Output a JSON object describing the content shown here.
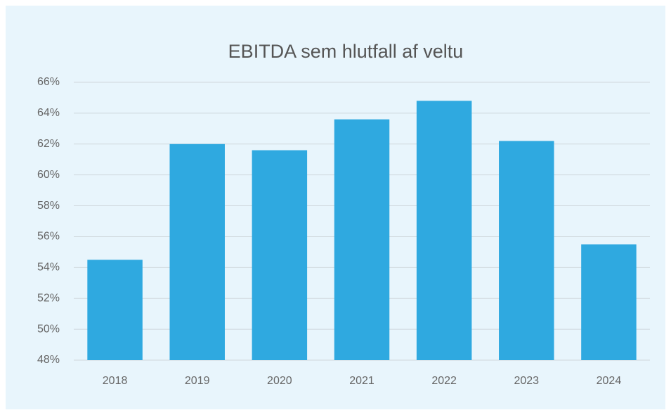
{
  "chart_data": {
    "type": "bar",
    "title": "EBITDA sem hlutfall af veltu",
    "categories": [
      "2018",
      "2019",
      "2020",
      "2021",
      "2022",
      "2023",
      "2024"
    ],
    "values": [
      54.5,
      62.0,
      61.6,
      63.6,
      64.8,
      62.2,
      55.5
    ],
    "color": "#2fa9e0",
    "ylim": [
      48,
      66
    ],
    "yticks": [
      {
        "value": 48,
        "label": "48%"
      },
      {
        "value": 50,
        "label": "50%"
      },
      {
        "value": 52,
        "label": "52%"
      },
      {
        "value": 54,
        "label": "54%"
      },
      {
        "value": 56,
        "label": "56%"
      },
      {
        "value": 58,
        "label": "58%"
      },
      {
        "value": 60,
        "label": "60%"
      },
      {
        "value": 62,
        "label": "62%"
      },
      {
        "value": 64,
        "label": "64%"
      },
      {
        "value": 66,
        "label": "66%"
      }
    ],
    "grid": true
  }
}
